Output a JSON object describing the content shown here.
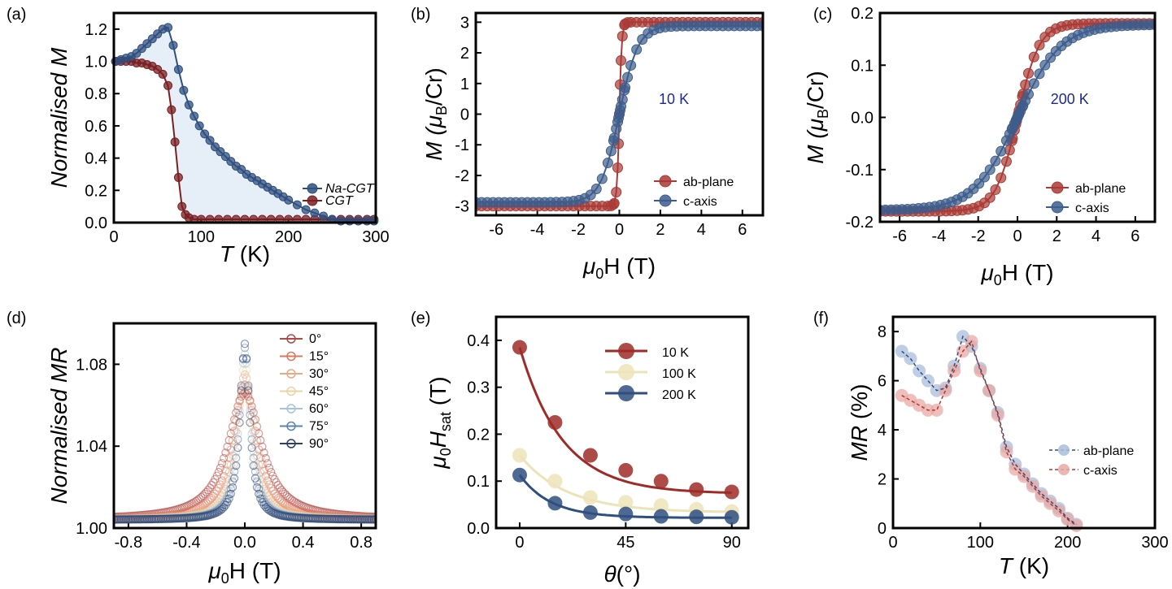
{
  "figure": {
    "panel_labels": [
      "(a)",
      "(b)",
      "(c)",
      "(d)",
      "(e)",
      "(f)"
    ]
  },
  "colors": {
    "na_cgt": "#2f4f7f",
    "cgt": "#7a1f22",
    "ab_plane": "#a93a35",
    "c_axis": "#3d5d8c",
    "shade": "#dce8f5"
  },
  "chart_data": [
    {
      "panel": "(a)",
      "type": "scatter",
      "title": "",
      "xlabel_main": "T",
      "xlabel_unit": " (K)",
      "ylabel": "Normalised  M",
      "xlim": [
        0,
        300
      ],
      "ylim": [
        0,
        1.3
      ],
      "xticks": [
        0,
        100,
        200,
        300
      ],
      "yticks": [
        0.0,
        0.2,
        0.4,
        0.6,
        0.8,
        1.0,
        1.2
      ],
      "xtick_labels": [
        "0",
        "100",
        "200",
        "300"
      ],
      "ytick_labels": [
        "0.0",
        "0.2",
        "0.4",
        "0.6",
        "0.8",
        "1.0",
        "1.2"
      ],
      "legend": [
        "Na-CGT",
        "CGT"
      ],
      "series": [
        {
          "name": "Na-CGT",
          "x": [
            2,
            8,
            14,
            20,
            26,
            32,
            38,
            44,
            50,
            56,
            62,
            68,
            74,
            80,
            86,
            92,
            98,
            104,
            110,
            116,
            122,
            128,
            134,
            140,
            146,
            152,
            158,
            164,
            170,
            176,
            182,
            188,
            194,
            200,
            210,
            220,
            230,
            240,
            250,
            260,
            270,
            280,
            290,
            298
          ],
          "y": [
            1.0,
            1.01,
            1.02,
            1.03,
            1.05,
            1.08,
            1.11,
            1.14,
            1.17,
            1.2,
            1.21,
            1.1,
            0.95,
            0.82,
            0.73,
            0.66,
            0.6,
            0.55,
            0.51,
            0.47,
            0.44,
            0.41,
            0.38,
            0.35,
            0.33,
            0.3,
            0.28,
            0.26,
            0.24,
            0.22,
            0.2,
            0.18,
            0.16,
            0.14,
            0.11,
            0.08,
            0.06,
            0.04,
            0.02,
            0.01,
            0.01,
            0.01,
            0.01,
            0.01
          ]
        },
        {
          "name": "CGT",
          "x": [
            2,
            8,
            14,
            20,
            26,
            32,
            38,
            44,
            50,
            56,
            62,
            66,
            70,
            74,
            78,
            82,
            86,
            92,
            100,
            110,
            120,
            130,
            140,
            150,
            160,
            170,
            180,
            190,
            200,
            210,
            220,
            230,
            240,
            250,
            260,
            270,
            280,
            290,
            298
          ],
          "y": [
            1.0,
            1.0,
            1.0,
            1.0,
            0.99,
            0.99,
            0.98,
            0.97,
            0.95,
            0.92,
            0.85,
            0.7,
            0.5,
            0.28,
            0.1,
            0.05,
            0.03,
            0.02,
            0.02,
            0.02,
            0.02,
            0.02,
            0.02,
            0.02,
            0.02,
            0.02,
            0.02,
            0.02,
            0.02,
            0.02,
            0.02,
            0.02,
            0.02,
            0.02,
            0.02,
            0.02,
            0.02,
            0.02,
            0.02
          ]
        }
      ]
    },
    {
      "panel": "(b)",
      "type": "scatter",
      "title": "",
      "annotation": "10 K",
      "xlabel_main": "μ",
      "xlabel_sub": "0",
      "xlabel_rest": "H (T)",
      "ylabel_main": "M (μ",
      "ylabel_sub": "B",
      "ylabel_rest": "/Cr)",
      "xlim": [
        -7,
        7
      ],
      "ylim": [
        -3.3,
        3.3
      ],
      "xticks": [
        -6,
        -4,
        -2,
        0,
        2,
        4,
        6
      ],
      "yticks": [
        -3,
        -2,
        -1,
        0,
        1,
        2,
        3
      ],
      "xtick_labels": [
        "-6",
        "-4",
        "-2",
        "0",
        "2",
        "4",
        "6"
      ],
      "ytick_labels": [
        "-3",
        "-2",
        "-1",
        "0",
        "1",
        "2",
        "3"
      ],
      "legend": [
        "ab-plane",
        "c-axis"
      ],
      "series": [
        {
          "name": "ab-plane",
          "kind": "ab_low",
          "msat": 3.0,
          "hs": 0.5
        },
        {
          "name": "c-axis",
          "kind": "c_low",
          "msat": 2.88,
          "hs": 1.0
        }
      ]
    },
    {
      "panel": "(c)",
      "type": "scatter",
      "title": "",
      "annotation": "200 K",
      "xlabel_main": "μ",
      "xlabel_sub": "0",
      "xlabel_rest": "H (T)",
      "ylabel_main": "M (μ",
      "ylabel_sub": "B",
      "ylabel_rest": "/Cr)",
      "xlim": [
        -7,
        7
      ],
      "ylim": [
        -0.2,
        0.2
      ],
      "xticks": [
        -6,
        -4,
        -2,
        0,
        2,
        4,
        6
      ],
      "yticks": [
        -0.2,
        -0.1,
        0.0,
        0.1,
        0.2
      ],
      "xtick_labels": [
        "-6",
        "-4",
        "-2",
        "0",
        "2",
        "4",
        "6"
      ],
      "ytick_labels": [
        "-0.2",
        "-0.1",
        "0.0",
        "0.1",
        "0.2"
      ],
      "legend": [
        "ab-plane",
        "c-axis"
      ],
      "series": [
        {
          "name": "ab-plane",
          "kind": "ab_high",
          "msat": 0.18,
          "hs": 1.2
        },
        {
          "name": "c-axis",
          "kind": "c_high",
          "msat": 0.178,
          "hs": 2.2
        }
      ]
    },
    {
      "panel": "(d)",
      "type": "scatter",
      "title": "",
      "xlabel_main": "μ",
      "xlabel_sub": "0",
      "xlabel_rest": "H (T)",
      "ylabel": "Normalised MR",
      "xlim": [
        -0.9,
        0.9
      ],
      "ylim": [
        1.0,
        1.1
      ],
      "xticks": [
        -0.8,
        -0.4,
        0.0,
        0.4,
        0.8
      ],
      "yticks": [
        1.0,
        1.04,
        1.08
      ],
      "xtick_labels": [
        "-0.8",
        "-0.4",
        "0.0",
        "0.4",
        "0.8"
      ],
      "ytick_labels": [
        "1.00",
        "1.04",
        "1.08"
      ],
      "legend": [
        "0°",
        "15°",
        "30°",
        "45°",
        "60°",
        "75°",
        "90°"
      ],
      "series": [
        {
          "name": "0°",
          "peak": 1.066,
          "width": 0.14
        },
        {
          "name": "15°",
          "peak": 1.07,
          "width": 0.1
        },
        {
          "name": "30°",
          "peak": 1.075,
          "width": 0.075
        },
        {
          "name": "45°",
          "peak": 1.08,
          "width": 0.06
        },
        {
          "name": "60°",
          "peak": 1.085,
          "width": 0.05
        },
        {
          "name": "75°",
          "peak": 1.088,
          "width": 0.045
        },
        {
          "name": "90°",
          "peak": 1.09,
          "width": 0.04
        }
      ]
    },
    {
      "panel": "(e)",
      "type": "line",
      "title": "",
      "xlabel_main": "θ",
      "xlabel_rest": "(°)",
      "ylabel_main": "μ",
      "ylabel_sub": "0",
      "ylabel_rest": "H",
      "ylabel_sub2": "sat",
      "ylabel_unit": " (T)",
      "xlim": [
        -10,
        97
      ],
      "ylim": [
        0,
        0.45
      ],
      "xticks": [
        0,
        45,
        90
      ],
      "yticks": [
        0.0,
        0.1,
        0.2,
        0.3,
        0.4
      ],
      "xtick_labels": [
        "0",
        "45",
        "90"
      ],
      "ytick_labels": [
        "0.0",
        "0.1",
        "0.2",
        "0.3",
        "0.4"
      ],
      "legend": [
        "10 K",
        "100 K",
        "200 K"
      ],
      "x": [
        0,
        15,
        30,
        45,
        60,
        75,
        90
      ],
      "series": [
        {
          "name": "10 K",
          "values": [
            0.385,
            0.225,
            0.155,
            0.123,
            0.1,
            0.082,
            0.077
          ]
        },
        {
          "name": "100 K",
          "values": [
            0.155,
            0.1,
            0.065,
            0.055,
            0.048,
            0.04,
            0.035
          ]
        },
        {
          "name": "200 K",
          "values": [
            0.113,
            0.053,
            0.033,
            0.03,
            0.025,
            0.024,
            0.023
          ]
        }
      ]
    },
    {
      "panel": "(f)",
      "type": "scatter",
      "title": "",
      "xlabel_main": "T",
      "xlabel_unit": " (K)",
      "ylabel_main": "MR",
      "ylabel_unit": " (%)",
      "xlim": [
        0,
        300
      ],
      "ylim": [
        0,
        8.6
      ],
      "xticks": [
        0,
        100,
        200,
        300
      ],
      "yticks": [
        0,
        2,
        4,
        6,
        8
      ],
      "xtick_labels": [
        "0",
        "100",
        "200",
        "300"
      ],
      "ytick_labels": [
        "0",
        "2",
        "4",
        "6",
        "8"
      ],
      "legend": [
        "ab-plane",
        "c-axis"
      ],
      "series": [
        {
          "name": "ab-plane",
          "x": [
            10,
            20,
            30,
            40,
            50,
            60,
            70,
            80,
            90,
            100,
            110,
            120,
            130,
            140,
            150,
            160,
            170,
            180,
            190,
            200,
            210
          ],
          "y": [
            7.2,
            6.9,
            6.4,
            6.0,
            5.6,
            5.7,
            6.6,
            7.8,
            7.4,
            6.5,
            5.6,
            4.7,
            3.3,
            2.6,
            2.2,
            1.8,
            1.4,
            1.1,
            0.8,
            0.4,
            0.15
          ]
        },
        {
          "name": "c-axis",
          "x": [
            10,
            20,
            30,
            40,
            50,
            60,
            70,
            80,
            90,
            100,
            110,
            120,
            130,
            140,
            150,
            160,
            170,
            180,
            190,
            200,
            210
          ],
          "y": [
            5.4,
            5.2,
            5.0,
            4.8,
            4.8,
            5.6,
            6.4,
            7.2,
            7.6,
            6.4,
            5.6,
            4.6,
            3.1,
            2.4,
            2.1,
            1.7,
            1.3,
            1.0,
            0.7,
            0.35,
            0.1
          ]
        }
      ]
    }
  ]
}
